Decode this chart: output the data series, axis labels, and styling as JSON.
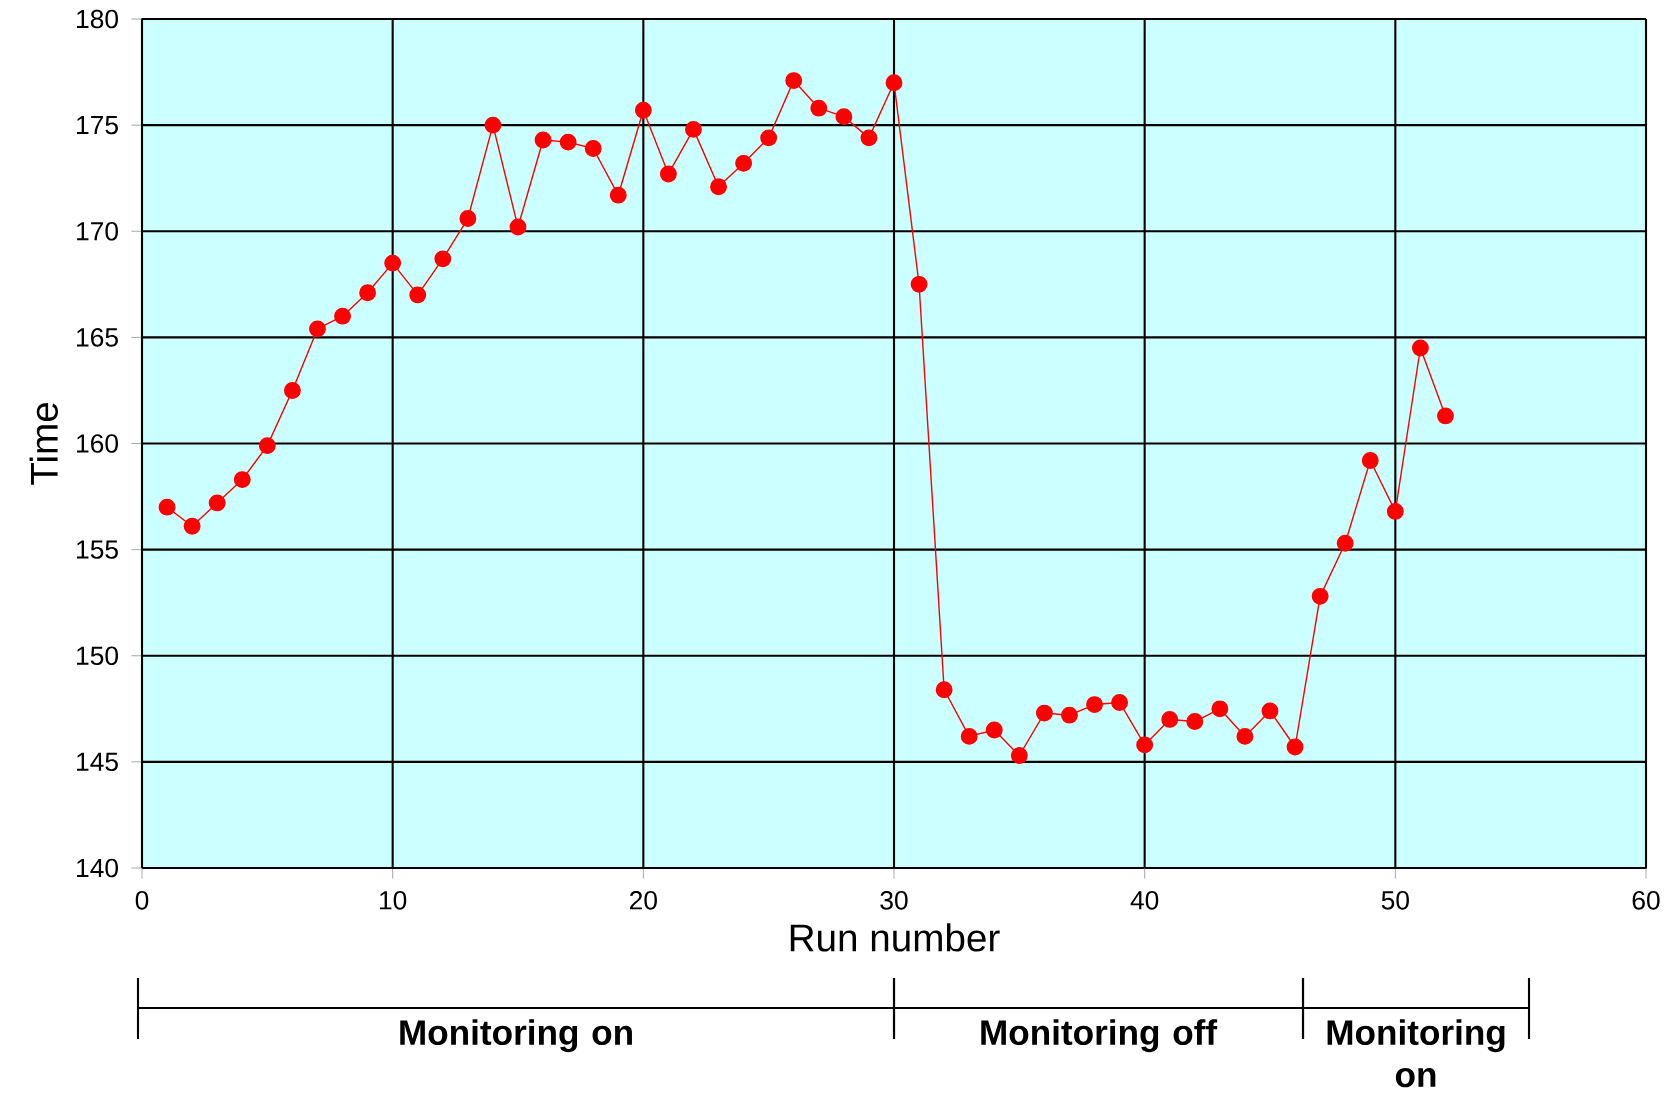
{
  "chart_data": {
    "type": "line",
    "xlabel": "Run number",
    "ylabel": "Time",
    "x": [
      1,
      2,
      3,
      4,
      5,
      6,
      7,
      8,
      9,
      10,
      11,
      12,
      13,
      14,
      15,
      16,
      17,
      18,
      19,
      20,
      21,
      22,
      23,
      24,
      25,
      26,
      27,
      28,
      29,
      30,
      31,
      32,
      33,
      34,
      35,
      36,
      37,
      38,
      39,
      40,
      41,
      42,
      43,
      44,
      45,
      46,
      47,
      48,
      49,
      50,
      51,
      52
    ],
    "series": [
      {
        "color": "#ff0000",
        "values": [
          157.0,
          156.1,
          157.2,
          158.3,
          159.9,
          162.5,
          165.4,
          166.0,
          167.1,
          168.5,
          167.0,
          168.7,
          170.6,
          175.0,
          170.2,
          174.3,
          174.2,
          173.9,
          171.7,
          175.7,
          172.7,
          174.8,
          172.1,
          173.2,
          174.4,
          177.1,
          175.8,
          175.4,
          174.4,
          177.0,
          167.5,
          148.4,
          146.2,
          146.5,
          145.3,
          147.3,
          147.2,
          147.7,
          147.8,
          145.8,
          147.0,
          146.9,
          147.5,
          146.2,
          147.4,
          145.7,
          152.8,
          155.3,
          159.2,
          156.8,
          164.5,
          161.3
        ]
      }
    ],
    "xlim": [
      0,
      60
    ],
    "ylim": [
      140,
      180
    ],
    "xticks": [
      0,
      10,
      20,
      30,
      40,
      50,
      60
    ],
    "yticks": [
      140,
      145,
      150,
      155,
      160,
      165,
      170,
      175,
      180
    ],
    "grid": true,
    "marker": "circle",
    "line_style": "solid",
    "annotations": [
      "Monitoring on",
      "Monitoring off",
      "Monitoring on"
    ]
  }
}
